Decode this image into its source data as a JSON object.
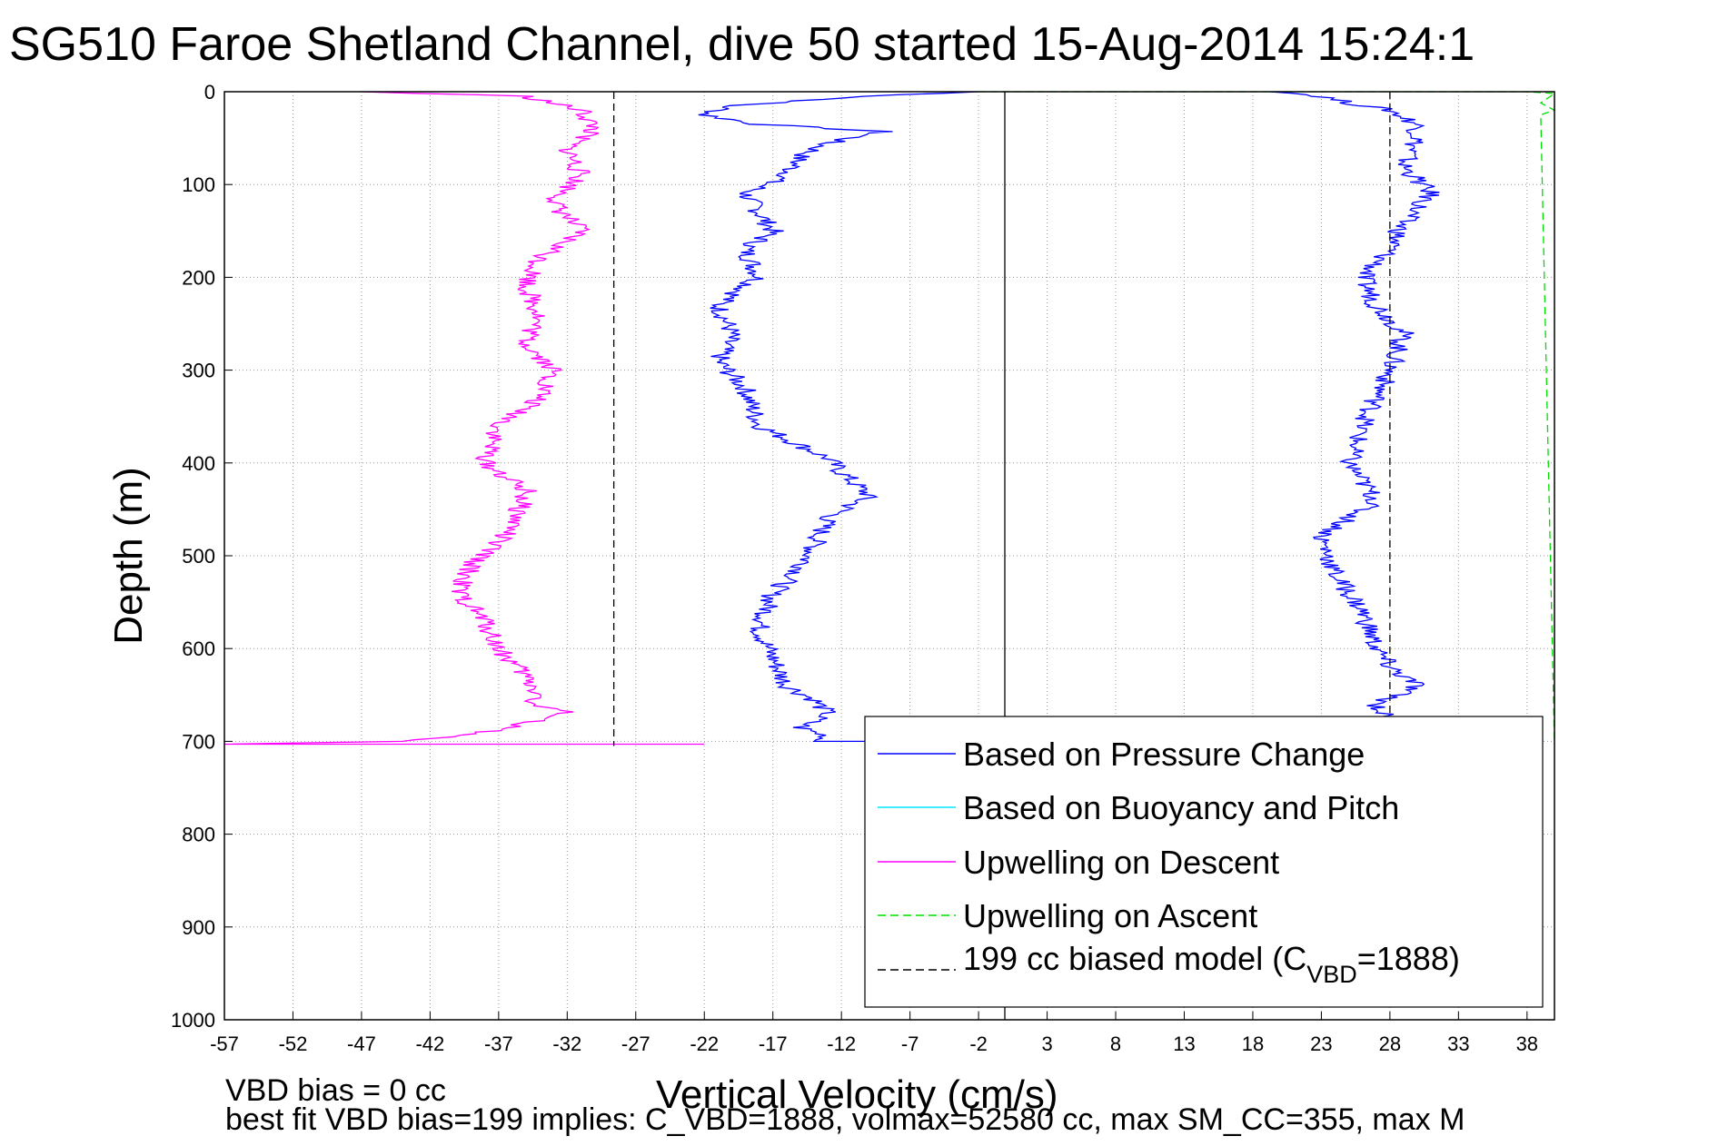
{
  "chart_data": {
    "type": "line",
    "title": "SG510 Faroe Shetland Channel, dive 50 started 15-Aug-2014 15:24:1",
    "xlabel": "Vertical Velocity (cm/s)",
    "ylabel": "Depth (m)",
    "xlim": [
      -57,
      40
    ],
    "ylim": [
      0,
      1000
    ],
    "y_reversed": true,
    "grid": true,
    "x_ticks": [
      "-57",
      "-52",
      "-47",
      "-42",
      "-37",
      "-32",
      "-27",
      "-22",
      "-17",
      "-12",
      "-7",
      "-2",
      "3",
      "8",
      "13",
      "18",
      "23",
      "28",
      "33",
      "38"
    ],
    "y_ticks": [
      "0",
      "100",
      "200",
      "300",
      "400",
      "500",
      "600",
      "700",
      "800",
      "900",
      "1000"
    ],
    "legend_position": "bottom-right",
    "legend": [
      {
        "label": "Based on Pressure Change",
        "color": "#0000ff",
        "style": "solid"
      },
      {
        "label": "Based on Buoyancy and Pitch",
        "color": "#00e5ff",
        "style": "solid"
      },
      {
        "label": "Upwelling on Descent",
        "color": "#ff00ff",
        "style": "solid"
      },
      {
        "label": "Upwelling on Ascent",
        "color": "#00dd00",
        "style": "dashed"
      },
      {
        "label_main": "199 cc biased model (C",
        "label_sub": "VBD",
        "label_end": "=1888)",
        "color": "#000000",
        "style": "dashed"
      }
    ],
    "series": [
      {
        "name": "Based on Pressure Change",
        "color": "#0000ff",
        "x": [
          -2,
          -10,
          -20,
          -22,
          -18,
          -9,
          -13,
          -15,
          -16,
          -19,
          -18,
          -17,
          -19,
          -18,
          -21,
          -20,
          -21,
          -19,
          -18,
          -13,
          -12,
          -10,
          -13,
          -14,
          -15,
          -17,
          -18,
          -17,
          -16,
          -14,
          -13,
          -15,
          -13,
          -14,
          -9,
          -9
        ],
        "y": [
          0,
          5,
          15,
          25,
          35,
          43,
          55,
          70,
          90,
          110,
          130,
          150,
          170,
          200,
          230,
          260,
          290,
          320,
          360,
          395,
          410,
          435,
          460,
          490,
          515,
          540,
          580,
          610,
          640,
          655,
          670,
          685,
          695,
          700,
          700,
          700
        ]
      },
      {
        "name": "Based on Pressure Change (ascent)",
        "color": "#0000ff",
        "x": [
          20,
          23,
          25,
          28,
          30,
          30,
          29,
          31,
          29,
          28,
          26,
          27,
          29,
          28,
          27,
          26,
          25,
          27,
          23,
          24,
          26,
          27,
          28,
          30,
          27,
          28
        ],
        "y": [
          0,
          5,
          12,
          20,
          35,
          50,
          80,
          110,
          140,
          170,
          200,
          230,
          260,
          300,
          330,
          360,
          400,
          440,
          480,
          520,
          560,
          600,
          620,
          640,
          660,
          680
        ]
      },
      {
        "name": "Upwelling on Descent",
        "color": "#ff00ff",
        "x": [
          -47,
          -35,
          -31,
          -30,
          -32,
          -31,
          -33,
          -31,
          -34,
          -35,
          -34,
          -35,
          -33,
          -34,
          -37,
          -38,
          -35,
          -36,
          -39,
          -40,
          -38,
          -37,
          -35,
          -34,
          -35,
          -33,
          -32,
          -38,
          -44,
          -57,
          -22
        ],
        "y": [
          0,
          5,
          20,
          40,
          60,
          90,
          120,
          150,
          180,
          210,
          240,
          270,
          300,
          330,
          360,
          400,
          430,
          470,
          510,
          540,
          570,
          600,
          630,
          650,
          660,
          665,
          670,
          690,
          700,
          703,
          703
        ]
      },
      {
        "name": "Upwelling on Ascent",
        "color": "#00dd00",
        "x": [
          -2,
          20,
          38,
          40,
          39,
          40,
          39,
          40
        ],
        "y": [
          0,
          0,
          0,
          2,
          12,
          20,
          25,
          703
        ]
      },
      {
        "name": "199 cc biased model (C_VBD=1888)",
        "color": "#000000",
        "x": [
          -28.6,
          -28.6,
          28
        ],
        "y": [
          0,
          705,
          0
        ]
      }
    ],
    "footnotes": [
      "VBD bias = 0 cc",
      "best fit VBD bias=199 implies: C_VBD=1888, volmax=52580 cc, max SM_CC=355, max M"
    ]
  }
}
